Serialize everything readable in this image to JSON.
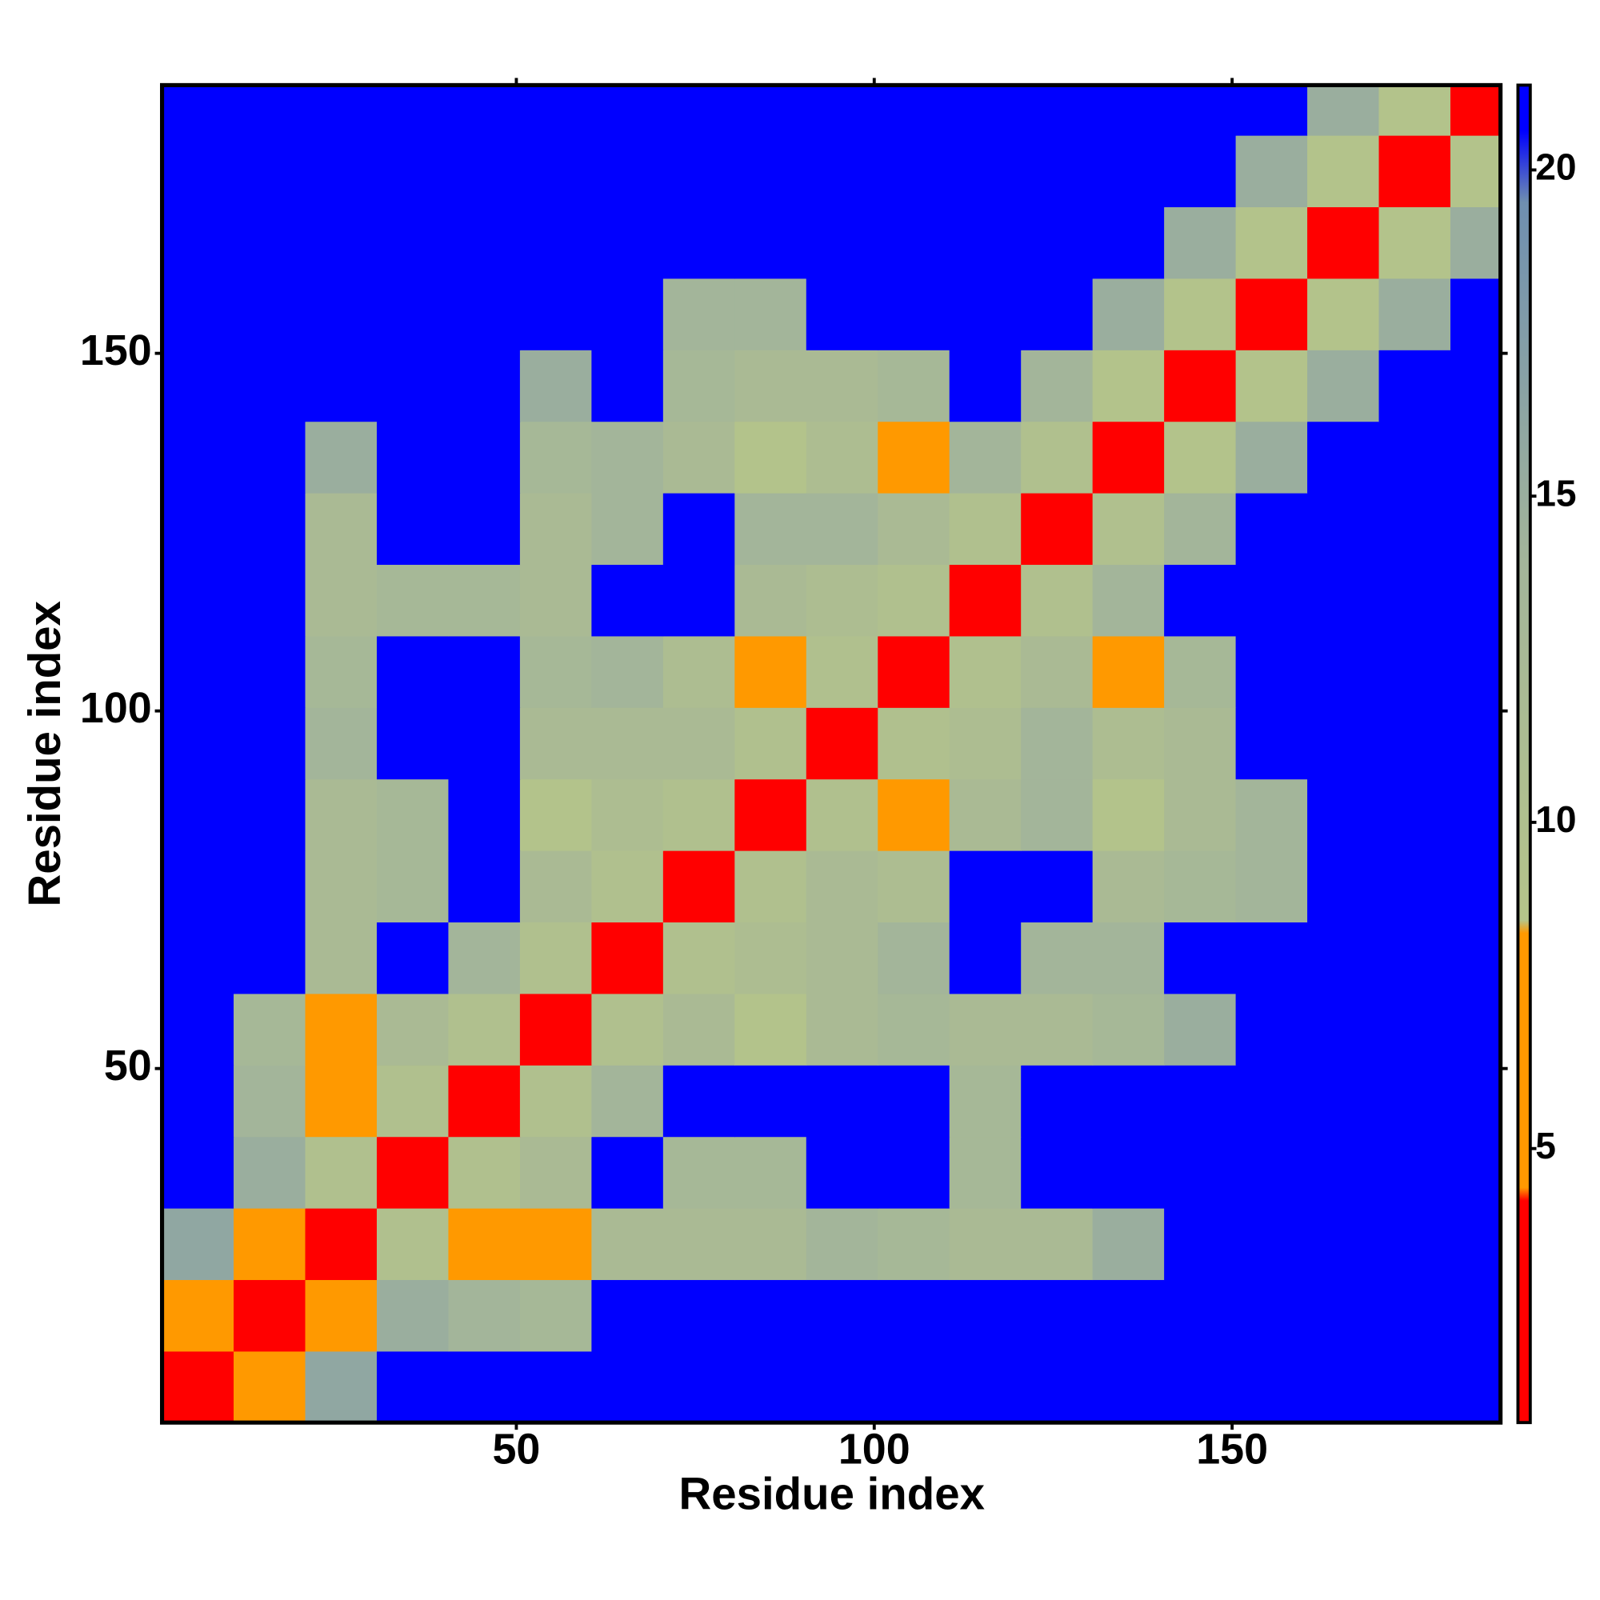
{
  "chart_data": {
    "type": "heatmap",
    "xlabel": "Residue index",
    "ylabel": "Residue index",
    "xbins": [
      0.5,
      10.5,
      20.5,
      30.5,
      40.5,
      50.5,
      60.5,
      70.5,
      80.5,
      90.5,
      100.5,
      110.5,
      120.5,
      130.5,
      140.5,
      150.5,
      160.5,
      170.5,
      180.5,
      187.5
    ],
    "ybins": [
      0.5,
      10.5,
      20.5,
      30.5,
      40.5,
      50.5,
      60.5,
      70.5,
      80.5,
      90.5,
      100.5,
      110.5,
      120.5,
      130.5,
      140.5,
      150.5,
      160.5,
      170.5,
      180.5,
      187.5
    ],
    "z": [
      [
        3,
        7,
        16,
        21,
        21,
        21,
        21,
        21,
        21,
        21,
        21,
        21,
        21,
        21,
        21,
        21,
        21,
        21,
        21
      ],
      [
        7,
        3,
        8,
        15,
        14,
        13,
        21,
        21,
        21,
        21,
        21,
        21,
        21,
        21,
        21,
        21,
        21,
        21,
        21
      ],
      [
        16,
        8,
        3,
        10,
        7,
        8,
        12,
        12,
        12,
        14,
        13,
        12,
        12,
        15,
        21,
        21,
        21,
        21,
        21
      ],
      [
        21,
        15,
        10,
        3,
        10,
        12,
        21,
        13,
        13,
        21,
        21,
        13,
        21,
        21,
        21,
        21,
        21,
        21,
        21
      ],
      [
        21,
        14,
        7,
        10,
        3,
        10,
        14,
        21,
        21,
        21,
        21,
        13,
        21,
        21,
        21,
        21,
        21,
        21,
        21
      ],
      [
        21,
        13,
        8,
        12,
        10,
        3,
        10,
        12,
        9,
        12,
        13,
        12,
        12,
        13,
        15,
        21,
        21,
        21,
        21
      ],
      [
        21,
        21,
        12,
        21,
        14,
        10,
        3,
        10,
        11,
        12,
        14,
        21,
        14,
        14,
        21,
        21,
        21,
        21,
        21
      ],
      [
        21,
        21,
        12,
        13,
        21,
        12,
        10,
        3,
        10,
        12,
        11,
        21,
        21,
        12,
        13,
        14,
        21,
        21,
        21
      ],
      [
        21,
        21,
        12,
        13,
        21,
        9,
        11,
        10,
        3,
        10,
        8,
        12,
        14,
        9,
        12,
        14,
        21,
        21,
        21
      ],
      [
        21,
        21,
        14,
        21,
        21,
        12,
        12,
        12,
        10,
        3,
        10,
        11,
        14,
        11,
        12,
        21,
        21,
        21,
        21
      ],
      [
        21,
        21,
        13,
        21,
        21,
        13,
        14,
        11,
        8,
        10,
        3,
        10,
        12,
        8,
        13,
        21,
        21,
        21,
        21
      ],
      [
        21,
        21,
        12,
        13,
        13,
        12,
        21,
        21,
        12,
        11,
        10,
        3,
        10,
        14,
        21,
        21,
        21,
        21,
        21
      ],
      [
        21,
        21,
        12,
        21,
        21,
        12,
        14,
        21,
        14,
        14,
        12,
        10,
        3,
        10,
        14,
        21,
        21,
        21,
        21
      ],
      [
        21,
        21,
        15,
        21,
        21,
        13,
        14,
        12,
        9,
        11,
        8,
        14,
        10,
        3,
        9,
        15,
        21,
        21,
        21
      ],
      [
        21,
        21,
        21,
        21,
        21,
        15,
        21,
        13,
        12,
        12,
        13,
        21,
        14,
        9,
        3,
        9,
        15,
        21,
        21
      ],
      [
        21,
        21,
        21,
        21,
        21,
        21,
        21,
        14,
        14,
        21,
        21,
        21,
        21,
        15,
        9,
        3,
        9,
        15,
        21
      ],
      [
        21,
        21,
        21,
        21,
        21,
        21,
        21,
        21,
        21,
        21,
        21,
        21,
        21,
        21,
        15,
        9,
        3,
        9,
        15
      ],
      [
        21,
        21,
        21,
        21,
        21,
        21,
        21,
        21,
        21,
        21,
        21,
        21,
        21,
        21,
        21,
        15,
        9,
        3,
        9
      ],
      [
        21,
        21,
        21,
        21,
        21,
        21,
        21,
        21,
        21,
        21,
        21,
        21,
        21,
        21,
        21,
        21,
        15,
        9,
        3
      ]
    ],
    "xlim": [
      0.5,
      187.5
    ],
    "ylim": [
      0.5,
      187.5
    ],
    "xticks": [
      50,
      100,
      150
    ],
    "yticks": [
      50,
      100,
      150
    ],
    "clim": [
      0.8,
      21.3
    ],
    "cticks": [
      5,
      10,
      15,
      20
    ],
    "colorscale": [
      [
        0.8,
        "#ff0000"
      ],
      [
        4.2,
        "#ff0000"
      ],
      [
        4.4,
        "#ff9900"
      ],
      [
        8.3,
        "#ff9900"
      ],
      [
        8.5,
        "#b5c48a"
      ],
      [
        14,
        "#a3b59a"
      ],
      [
        19.5,
        "#6f8fb0"
      ],
      [
        20.6,
        "#0000ff"
      ],
      [
        21.3,
        "#0000ff"
      ]
    ]
  }
}
